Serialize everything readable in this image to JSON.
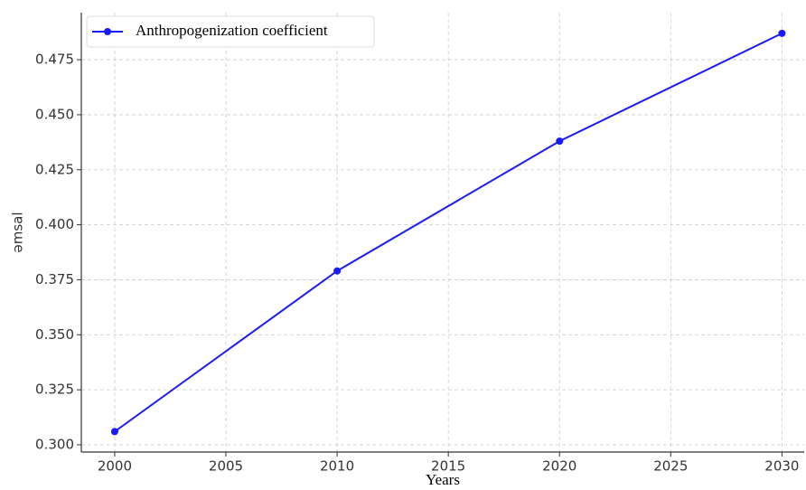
{
  "chart_data": {
    "type": "line",
    "x": [
      2000,
      2010,
      2020,
      2030
    ],
    "series": [
      {
        "name": "Anthropogenization coefficient",
        "color": "#1a1aff",
        "values": [
          0.306,
          0.379,
          0.438,
          0.487
        ]
      }
    ],
    "xlabel": "Years",
    "ylabel": "əmsal",
    "xlim": [
      1998.5,
      2031
    ],
    "xticks": [
      2000,
      2005,
      2010,
      2015,
      2020,
      2025,
      2030
    ],
    "ylim": [
      0.2967,
      0.4964
    ],
    "yticks": [
      {
        "value": 0.3,
        "label": "0.300"
      },
      {
        "value": 0.325,
        "label": "0.325"
      },
      {
        "value": 0.35,
        "label": "0.350"
      },
      {
        "value": 0.375,
        "label": "0.375"
      },
      {
        "value": 0.4,
        "label": "0.400"
      },
      {
        "value": 0.425,
        "label": "0.425"
      },
      {
        "value": 0.45,
        "label": "0.450"
      },
      {
        "value": 0.475,
        "label": "0.475"
      }
    ],
    "grid": true,
    "legend": "upper left"
  }
}
